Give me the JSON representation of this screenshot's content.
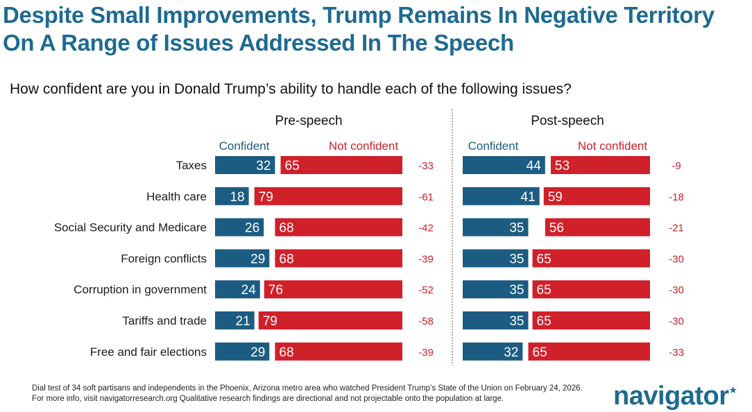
{
  "title": "Despite Small Improvements, Trump Remains In Negative Territory On A Range of Issues Addressed In The Speech",
  "subtitle": "How confident are you in Donald Trump’s ability to handle each of the following issues?",
  "footnote": "Dial test of 34 soft partisans and independents in the Phoenix, Arizona metro area who watched President Trump’s State of the Union on February 24, 2026. For more info, visit navigatorresearch.org Qualitative research findings are directional and not projectable onto the population at large.",
  "logo": {
    "text": "navigator",
    "star": "★"
  },
  "colors": {
    "confident": "#1c5c82",
    "not_confident": "#d0202a",
    "title": "#1e6a91",
    "net": "#c8202a"
  },
  "chart_data": {
    "type": "bar",
    "orientation": "horizontal",
    "stacked": true,
    "categories": [
      "Taxes",
      "Health care",
      "Social Security and Medicare",
      "Foreign conflicts",
      "Corruption in government",
      "Tariffs and trade",
      "Free and fair elections"
    ],
    "panels": [
      {
        "title": "Pre-speech",
        "series": [
          {
            "name": "Confident",
            "values": [
              32,
              18,
              26,
              29,
              24,
              21,
              29
            ]
          },
          {
            "name": "Not confident",
            "values": [
              65,
              79,
              68,
              68,
              76,
              79,
              68
            ]
          }
        ],
        "net": [
          "-33",
          "-61",
          "-42",
          "-39",
          "-52",
          "-58",
          "-39"
        ]
      },
      {
        "title": "Post-speech",
        "series": [
          {
            "name": "Confident",
            "values": [
              44,
              41,
              35,
              35,
              35,
              35,
              32
            ]
          },
          {
            "name": "Not confident",
            "values": [
              53,
              59,
              56,
              65,
              65,
              65,
              65
            ]
          }
        ],
        "net": [
          "-9",
          "-18",
          "-21",
          "-30",
          "-30",
          "-30",
          "-33"
        ]
      }
    ],
    "xlim": [
      0,
      100
    ]
  }
}
